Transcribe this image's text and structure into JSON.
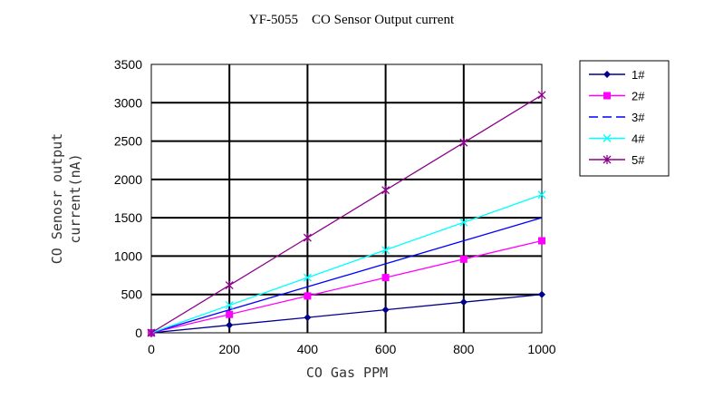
{
  "chart_data": {
    "type": "line",
    "title": "YF-5055    CO Sensor Output current",
    "xlabel": "CO Gas PPM",
    "ylabel_lines": [
      "CO Senosr output",
      "current(nA)"
    ],
    "x": [
      0,
      200,
      400,
      600,
      800,
      1000
    ],
    "xlim": [
      0,
      1000
    ],
    "ylim": [
      0,
      3500
    ],
    "xticks": [
      "0",
      "200",
      "400",
      "600",
      "800",
      "1000"
    ],
    "yticks": [
      "0",
      "500",
      "1000",
      "1500",
      "2000",
      "2500",
      "3000",
      "3500"
    ],
    "grid": true,
    "legend_position": "right",
    "series": [
      {
        "name": "1#",
        "values": [
          0,
          100,
          200,
          300,
          400,
          500
        ],
        "color": "#00008B",
        "marker": "diamond"
      },
      {
        "name": "2#",
        "values": [
          0,
          240,
          480,
          720,
          960,
          1200
        ],
        "color": "#FF00FF",
        "marker": "square"
      },
      {
        "name": "3#",
        "values": [
          0,
          300,
          600,
          900,
          1200,
          1500
        ],
        "color": "#0000FF",
        "marker": "none"
      },
      {
        "name": "4#",
        "values": [
          0,
          360,
          720,
          1080,
          1440,
          1800
        ],
        "color": "#00FFFF",
        "marker": "x"
      },
      {
        "name": "5#",
        "values": [
          0,
          620,
          1240,
          1860,
          2480,
          3100
        ],
        "color": "#8B008B",
        "marker": "star"
      }
    ]
  }
}
